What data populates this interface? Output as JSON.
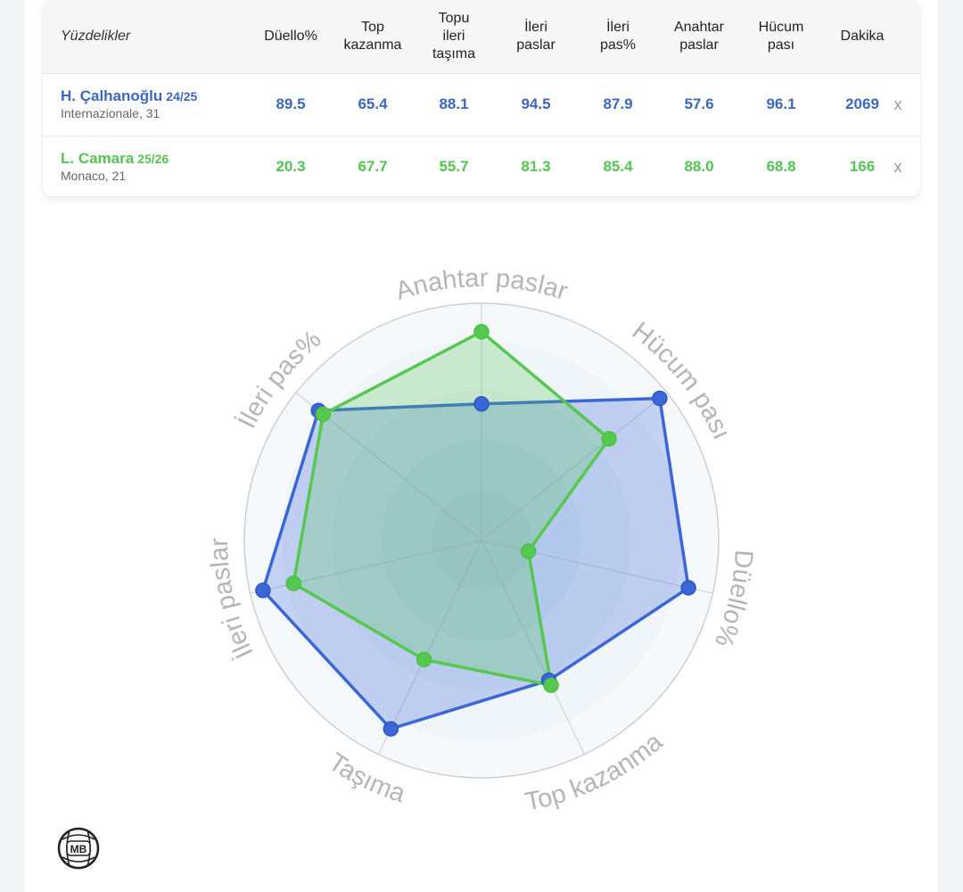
{
  "table": {
    "header_label": "Yüzdelikler",
    "columns": [
      "Düello%",
      "Top\nkazanma",
      "Topu\nileri\ntaşıma",
      "İleri\npaslar",
      "İleri\npas%",
      "Anahtar\npaslar",
      "Hücum\npası",
      "Dakika"
    ],
    "rows": [
      {
        "name": "H. Çalhanoğlu",
        "season": "24/25",
        "club": "Internazionale, 31",
        "values": [
          "89.5",
          "65.4",
          "88.1",
          "94.5",
          "87.9",
          "57.6",
          "96.1",
          "2069"
        ],
        "remove": "x"
      },
      {
        "name": "L. Camara",
        "season": "25/26",
        "club": "Monaco, 21",
        "values": [
          "20.3",
          "67.7",
          "55.7",
          "81.3",
          "85.4",
          "88.0",
          "68.8",
          "166"
        ],
        "remove": "x"
      }
    ]
  },
  "chart_data": {
    "type": "radar",
    "axes": [
      "Anahtar paslar",
      "Hücum pası",
      "Düello%",
      "Top kazanma",
      "Taşıma",
      "İleri paslar",
      "İleri pas%"
    ],
    "range": [
      0,
      100
    ],
    "series": [
      {
        "name": "H. Çalhanoğlu",
        "color": "#3a66d6",
        "values": [
          57.6,
          96.1,
          89.5,
          65.4,
          88.1,
          94.5,
          87.9
        ]
      },
      {
        "name": "L. Camara",
        "color": "#55c84f",
        "values": [
          88.0,
          68.8,
          20.3,
          67.7,
          55.7,
          81.3,
          85.4
        ]
      }
    ]
  },
  "colors": {
    "player1": "#3d67bf",
    "player2": "#55c455"
  },
  "logo": {
    "text": "MB",
    "icon": "mb-ball-logo"
  }
}
